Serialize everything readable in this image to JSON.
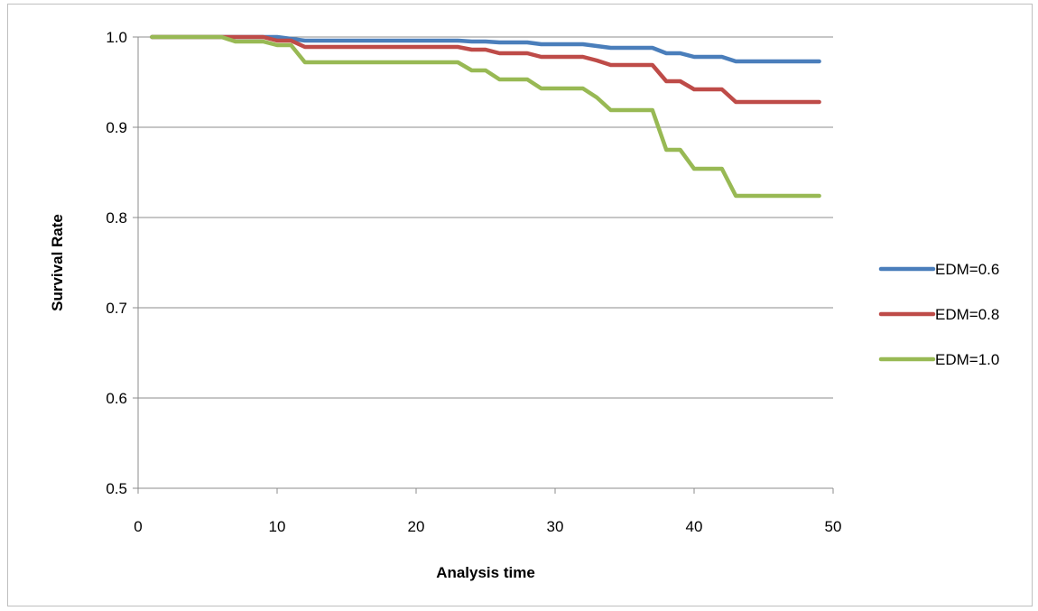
{
  "chart_data": {
    "type": "line",
    "title": "",
    "xlabel": "Analysis time",
    "ylabel": "Survival Rate",
    "xlim": [
      0,
      50
    ],
    "ylim": [
      0.5,
      1.0
    ],
    "xticks": [
      "0",
      "10",
      "20",
      "30",
      "40",
      "50"
    ],
    "yticks": [
      "0.5",
      "0.6",
      "0.7",
      "0.8",
      "0.9",
      "1.0"
    ],
    "grid": "horizontal",
    "legend_position": "right",
    "series": [
      {
        "name": "EDM=0.6",
        "color": "#4a7ebb",
        "x": [
          1,
          10,
          11,
          12,
          23,
          24,
          25,
          26,
          28,
          29,
          32,
          33,
          34,
          37,
          38,
          39,
          40,
          42,
          43,
          49
        ],
        "y": [
          1.0,
          1.0,
          0.998,
          0.996,
          0.996,
          0.995,
          0.995,
          0.994,
          0.994,
          0.992,
          0.992,
          0.99,
          0.988,
          0.988,
          0.982,
          0.982,
          0.978,
          0.978,
          0.973,
          0.973
        ]
      },
      {
        "name": "EDM=0.8",
        "color": "#be4b48",
        "x": [
          1,
          9,
          10,
          11,
          12,
          23,
          24,
          25,
          26,
          28,
          29,
          32,
          33,
          34,
          37,
          38,
          39,
          40,
          42,
          43,
          49
        ],
        "y": [
          1.0,
          1.0,
          0.996,
          0.996,
          0.989,
          0.989,
          0.986,
          0.986,
          0.982,
          0.982,
          0.978,
          0.978,
          0.974,
          0.969,
          0.969,
          0.951,
          0.951,
          0.942,
          0.942,
          0.928,
          0.928
        ]
      },
      {
        "name": "EDM=1.0",
        "color": "#98b954",
        "x": [
          1,
          6,
          7,
          9,
          10,
          11,
          12,
          23,
          24,
          25,
          26,
          28,
          29,
          32,
          33,
          34,
          37,
          38,
          39,
          40,
          42,
          43,
          49
        ],
        "y": [
          1.0,
          1.0,
          0.995,
          0.995,
          0.991,
          0.991,
          0.972,
          0.972,
          0.963,
          0.963,
          0.953,
          0.953,
          0.943,
          0.943,
          0.933,
          0.919,
          0.919,
          0.875,
          0.875,
          0.854,
          0.854,
          0.824,
          0.824
        ]
      }
    ]
  }
}
